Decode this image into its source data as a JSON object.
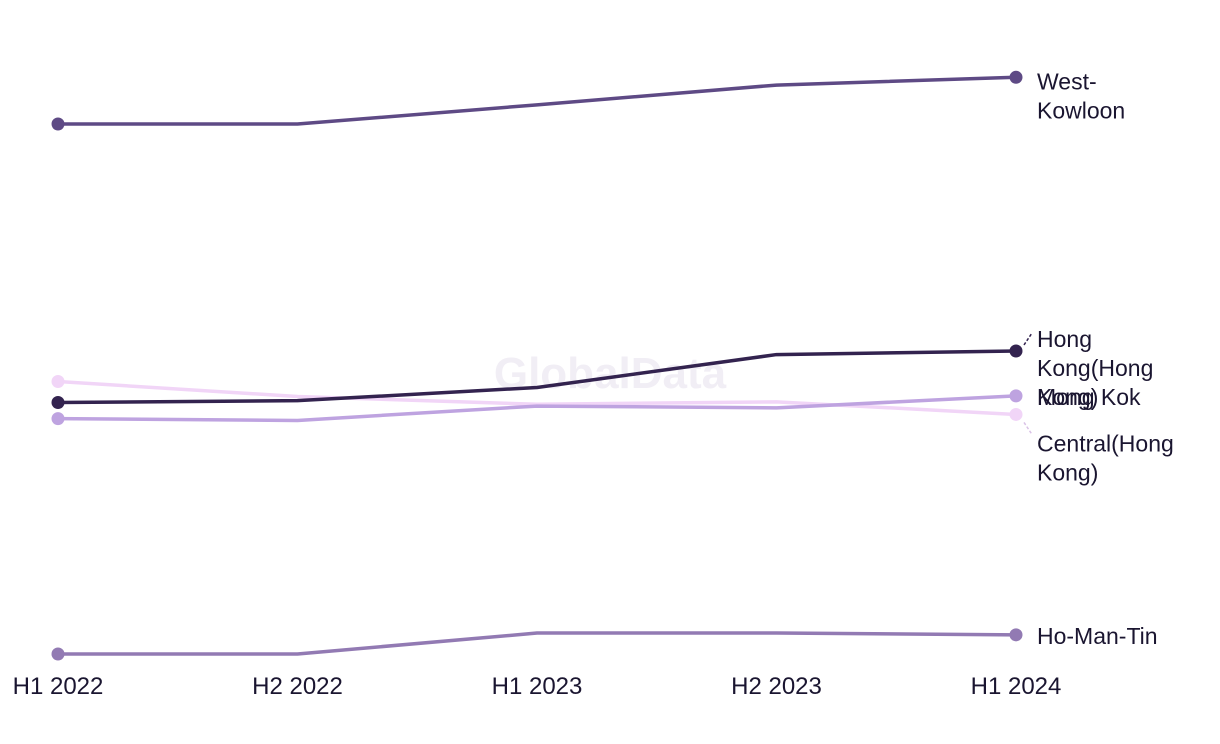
{
  "watermark": "GlobalData",
  "chart_data": {
    "type": "line",
    "title": "",
    "xlabel": "",
    "ylabel": "",
    "categories": [
      "H1 2022",
      "H2 2022",
      "H1 2023",
      "H2 2023",
      "H1 2024"
    ],
    "ylim": [
      0,
      100
    ],
    "grid": false,
    "legend": "inline labels at right end of each line",
    "series": [
      {
        "name": "West-Kowloon",
        "label_lines": [
          "West-",
          "Kowloon"
        ],
        "color": "#5e4a85",
        "values": [
          88.5,
          88.5,
          91.7,
          95.0,
          96.3
        ]
      },
      {
        "name": "Hong Kong(Hong Kong)",
        "label_lines": [
          "Hong",
          "Kong(Hong",
          "Kong)"
        ],
        "color": "#33234f",
        "values": [
          42.0,
          42.3,
          44.5,
          50.0,
          50.6
        ]
      },
      {
        "name": "Mong Kok",
        "label_lines": [
          "Mong Kok"
        ],
        "color": "#bea3e0",
        "values": [
          39.3,
          39.0,
          41.4,
          41.1,
          43.1
        ]
      },
      {
        "name": "Central(Hong Kong)",
        "label_lines": [
          "Central(Hong",
          "Kong)"
        ],
        "color": "#f1d5f7",
        "values": [
          45.5,
          43.0,
          41.7,
          42.1,
          40.0
        ]
      },
      {
        "name": "Ho-Man-Tin",
        "label_lines": [
          "Ho-Man-Tin"
        ],
        "color": "#927ab3",
        "values": [
          0.0,
          0.0,
          3.5,
          3.5,
          3.2
        ]
      }
    ]
  }
}
